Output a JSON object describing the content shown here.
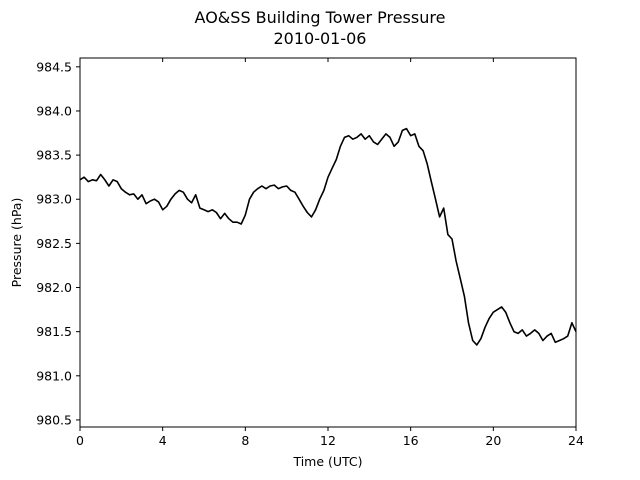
{
  "chart_data": {
    "type": "line",
    "title": "AO&SS Building Tower Pressure",
    "subtitle": "2010-01-06",
    "xlabel": "Time (UTC)",
    "ylabel": "Pressure (hPa)",
    "xlim": [
      0,
      24
    ],
    "ylim": [
      980.42,
      984.6
    ],
    "xticks": [
      0,
      4,
      8,
      12,
      16,
      20,
      24
    ],
    "yticks": [
      980.5,
      981.0,
      981.5,
      982.0,
      982.5,
      983.0,
      983.5,
      984.0,
      984.5
    ],
    "ytick_labels": [
      "980.5",
      "981.0",
      "981.5",
      "982.0",
      "982.5",
      "983.0",
      "983.5",
      "984.0",
      "984.5"
    ],
    "grid": false,
    "line_color": "#000000",
    "series": [
      {
        "x": [
          0,
          0.2,
          0.4,
          0.6,
          0.8,
          1.0,
          1.2,
          1.4,
          1.6,
          1.8,
          2.0,
          2.2,
          2.4,
          2.6,
          2.8,
          3.0,
          3.2,
          3.4,
          3.6,
          3.8,
          4.0,
          4.2,
          4.4,
          4.6,
          4.8,
          5.0,
          5.2,
          5.4,
          5.6,
          5.8,
          6.0,
          6.2,
          6.4,
          6.6,
          6.8,
          7.0,
          7.2,
          7.4,
          7.6,
          7.8,
          8.0,
          8.2,
          8.4,
          8.6,
          8.8,
          9.0,
          9.2,
          9.4,
          9.6,
          9.8,
          10.0,
          10.2,
          10.4,
          10.6,
          10.8,
          11.0,
          11.2,
          11.4,
          11.6,
          11.8,
          12.0,
          12.2,
          12.4,
          12.6,
          12.8,
          13.0,
          13.2,
          13.4,
          13.6,
          13.8,
          14.0,
          14.2,
          14.4,
          14.6,
          14.8,
          15.0,
          15.2,
          15.4,
          15.6,
          15.8,
          16.0,
          16.2,
          16.4,
          16.6,
          16.8,
          17.0,
          17.2,
          17.4,
          17.6,
          17.8,
          18.0,
          18.2,
          18.4,
          18.6,
          18.8,
          19.0,
          19.2,
          19.4,
          19.6,
          19.8,
          20.0,
          20.2,
          20.4,
          20.6,
          20.8,
          21.0,
          21.2,
          21.4,
          21.6,
          21.8,
          22.0,
          22.2,
          22.4,
          22.6,
          22.8,
          23.0,
          23.2,
          23.4,
          23.6,
          23.8,
          24.0
        ],
        "values": [
          983.22,
          983.25,
          983.2,
          983.22,
          983.21,
          983.28,
          983.22,
          983.15,
          983.22,
          983.2,
          983.12,
          983.08,
          983.05,
          983.06,
          983.0,
          983.05,
          982.95,
          982.98,
          983.0,
          982.97,
          982.88,
          982.92,
          983.0,
          983.06,
          983.1,
          983.08,
          983.0,
          982.96,
          983.05,
          982.9,
          982.88,
          982.86,
          982.88,
          982.85,
          982.78,
          982.84,
          982.78,
          982.74,
          982.74,
          982.72,
          982.82,
          983.0,
          983.08,
          983.12,
          983.15,
          983.12,
          983.15,
          983.16,
          983.12,
          983.14,
          983.15,
          983.1,
          983.08,
          983.0,
          982.92,
          982.85,
          982.8,
          982.88,
          983.0,
          983.1,
          983.25,
          983.35,
          983.45,
          983.6,
          983.7,
          983.72,
          983.68,
          983.7,
          983.74,
          983.68,
          983.72,
          983.65,
          983.62,
          983.68,
          983.74,
          983.7,
          983.6,
          983.65,
          983.78,
          983.8,
          983.72,
          983.74,
          983.6,
          983.55,
          983.4,
          983.2,
          983.0,
          982.8,
          982.9,
          982.6,
          982.55,
          982.3,
          982.1,
          981.9,
          981.6,
          981.4,
          981.35,
          981.42,
          981.55,
          981.65,
          981.72,
          981.75,
          981.78,
          981.72,
          981.6,
          981.5,
          981.48,
          981.52,
          981.45,
          981.48,
          981.52,
          981.48,
          981.4,
          981.45,
          981.48,
          981.38,
          981.4,
          981.42,
          981.45,
          981.6,
          981.5
        ]
      }
    ]
  }
}
